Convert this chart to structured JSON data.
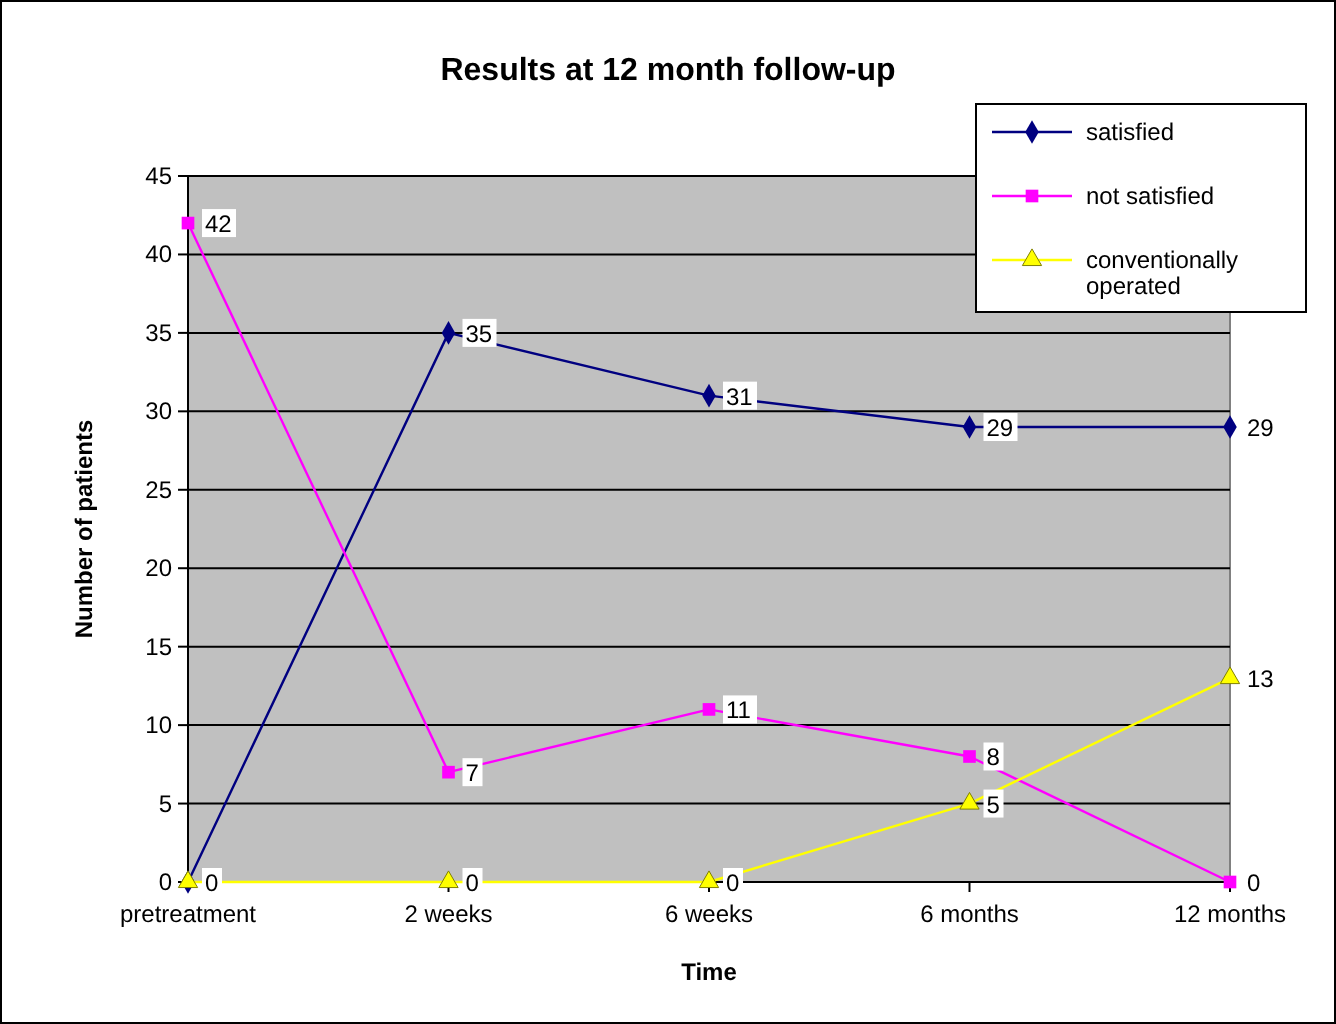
{
  "chart_data": {
    "type": "line",
    "title": "Results at 12 month follow-up",
    "xlabel": "Time",
    "ylabel": "Number of patients",
    "categories": [
      "pretreatment",
      "2 weeks",
      "6 weeks",
      "6 months",
      "12 months"
    ],
    "series": [
      {
        "name": "satisfied",
        "color": "#000080",
        "marker": "diamond",
        "values": [
          0,
          35,
          31,
          29,
          29
        ],
        "value_labels": [
          null,
          "35",
          "31",
          "29",
          "29"
        ]
      },
      {
        "name": "not satisfied",
        "color": "#ff00ff",
        "marker": "square",
        "values": [
          42,
          7,
          11,
          8,
          0
        ],
        "value_labels": [
          "42",
          "7",
          "11",
          "8",
          "0"
        ]
      },
      {
        "name": "conventionally operated",
        "color": "#ffff00",
        "marker": "triangle",
        "values": [
          0,
          0,
          0,
          5,
          13
        ],
        "value_labels": [
          "0",
          "0",
          "0",
          "5",
          "13"
        ]
      }
    ],
    "ylim": [
      0,
      45
    ],
    "yticks": [
      0,
      5,
      10,
      15,
      20,
      25,
      30,
      35,
      40,
      45
    ],
    "grid": "y",
    "legend": "top right"
  }
}
